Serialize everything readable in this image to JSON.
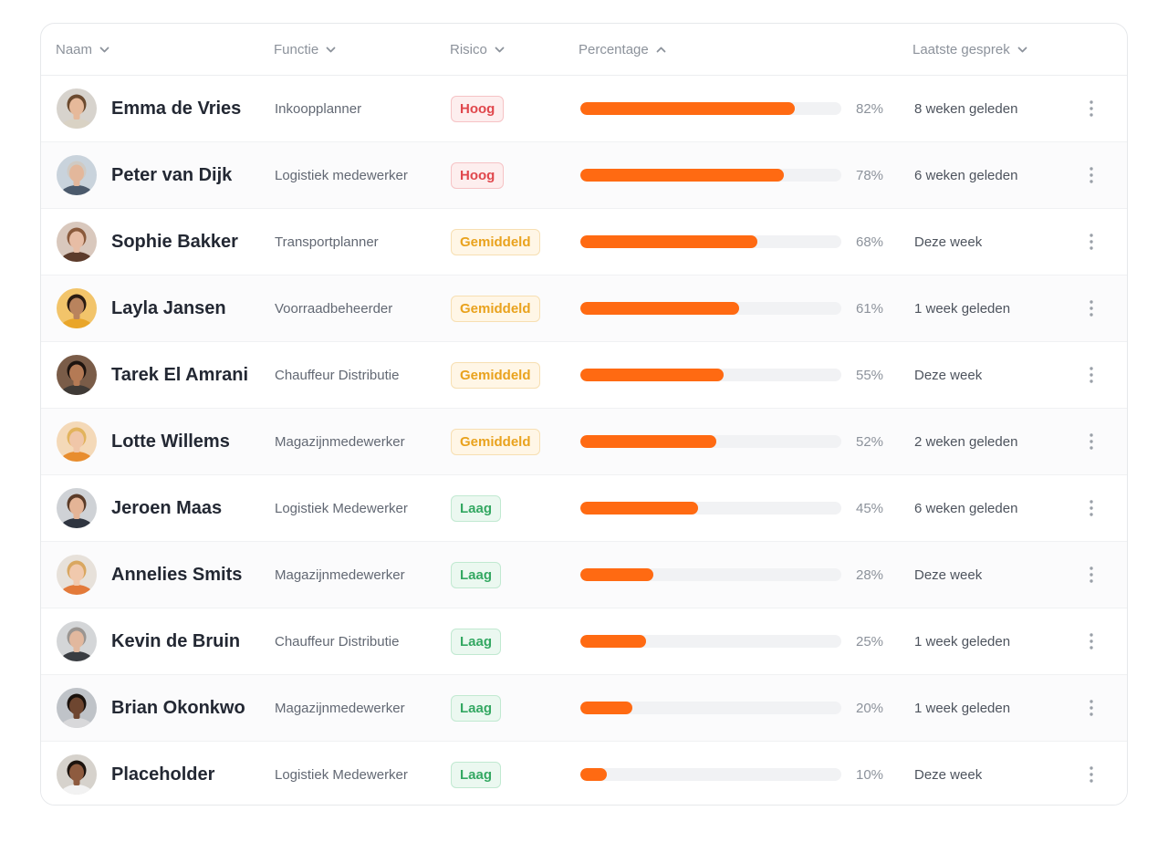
{
  "header": {
    "name": "Naam",
    "function": "Functie",
    "risk": "Risico",
    "percentage": "Percentage",
    "last_conversation": "Laatste gesprek"
  },
  "colors": {
    "progress_fill": "#ff6a12",
    "risk_high": "#e0474c",
    "risk_medium": "#e9a21d",
    "risk_low": "#34a862"
  },
  "rows": [
    {
      "name": "Emma de Vries",
      "function": "Inkoopplanner",
      "risk": "Hoog",
      "risk_level": "hoog",
      "percent": 82,
      "percent_label": "82%",
      "last": "8 weken geleden",
      "avatar": {
        "skin": "#e6b99a",
        "hair": "#6b4a2f",
        "shirt": "#d9d2c4",
        "bg": "#d7d3cd"
      }
    },
    {
      "name": "Peter van Dijk",
      "function": "Logistiek medewerker",
      "risk": "Hoog",
      "risk_level": "hoog",
      "percent": 78,
      "percent_label": "78%",
      "last": "6 weken geleden",
      "avatar": {
        "skin": "#e3b79b",
        "hair": "#cfcac4",
        "shirt": "#4b5a6c",
        "bg": "#c9d3dc"
      }
    },
    {
      "name": "Sophie Bakker",
      "function": "Transportplanner",
      "risk": "Gemiddeld",
      "risk_level": "gem",
      "percent": 68,
      "percent_label": "68%",
      "last": "Deze week",
      "avatar": {
        "skin": "#e7bda5",
        "hair": "#8a5a3c",
        "shirt": "#5c3b2b",
        "bg": "#d9c8bd"
      }
    },
    {
      "name": "Layla Jansen",
      "function": "Voorraadbeheerder",
      "risk": "Gemiddeld",
      "risk_level": "gem",
      "percent": 61,
      "percent_label": "61%",
      "last": "1 week geleden",
      "avatar": {
        "skin": "#b9835d",
        "hair": "#2a1b12",
        "shirt": "#e9a62a",
        "bg": "#f2c46a"
      }
    },
    {
      "name": "Tarek El Amrani",
      "function": "Chauffeur Distributie",
      "risk": "Gemiddeld",
      "risk_level": "gem",
      "percent": 55,
      "percent_label": "55%",
      "last": "Deze week",
      "avatar": {
        "skin": "#b47a55",
        "hair": "#1e140f",
        "shirt": "#3f3a36",
        "bg": "#7a5c48"
      }
    },
    {
      "name": "Lotte Willems",
      "function": "Magazijnmedewerker",
      "risk": "Gemiddeld",
      "risk_level": "gem",
      "percent": 52,
      "percent_label": "52%",
      "last": "2 weken geleden",
      "avatar": {
        "skin": "#f0c6a8",
        "hair": "#e2b35c",
        "shirt": "#e88d2e",
        "bg": "#f4d9b8"
      }
    },
    {
      "name": "Jeroen Maas",
      "function": "Logistiek Medewerker",
      "risk": "Laag",
      "risk_level": "laag",
      "percent": 45,
      "percent_label": "45%",
      "last": "6 weken geleden",
      "avatar": {
        "skin": "#e4b496",
        "hair": "#5a3b28",
        "shirt": "#2f3540",
        "bg": "#cfd2d6"
      }
    },
    {
      "name": "Annelies Smits",
      "function": "Magazijnmedewerker",
      "risk": "Laag",
      "risk_level": "laag",
      "percent": 28,
      "percent_label": "28%",
      "last": "Deze week",
      "avatar": {
        "skin": "#f1c9ad",
        "hair": "#d9a760",
        "shirt": "#e37a3a",
        "bg": "#e7e1da"
      }
    },
    {
      "name": "Kevin de Bruin",
      "function": "Chauffeur Distributie",
      "risk": "Laag",
      "risk_level": "laag",
      "percent": 25,
      "percent_label": "25%",
      "last": "1 week geleden",
      "avatar": {
        "skin": "#e2b89e",
        "hair": "#9a9591",
        "shirt": "#3a3d42",
        "bg": "#d4d6d8"
      }
    },
    {
      "name": "Brian Okonkwo",
      "function": "Magazijnmedewerker",
      "risk": "Laag",
      "risk_level": "laag",
      "percent": 20,
      "percent_label": "20%",
      "last": "1 week geleden",
      "avatar": {
        "skin": "#6e4630",
        "hair": "#1a120d",
        "shirt": "#d8d8da",
        "bg": "#bfc3c8"
      }
    },
    {
      "name": "Placeholder",
      "function": "Logistiek Medewerker",
      "risk": "Laag",
      "risk_level": "laag",
      "percent": 10,
      "percent_label": "10%",
      "last": "Deze week",
      "avatar": {
        "skin": "#8e5b3f",
        "hair": "#1c130e",
        "shirt": "#f2f2f2",
        "bg": "#d6d2cc"
      }
    }
  ]
}
